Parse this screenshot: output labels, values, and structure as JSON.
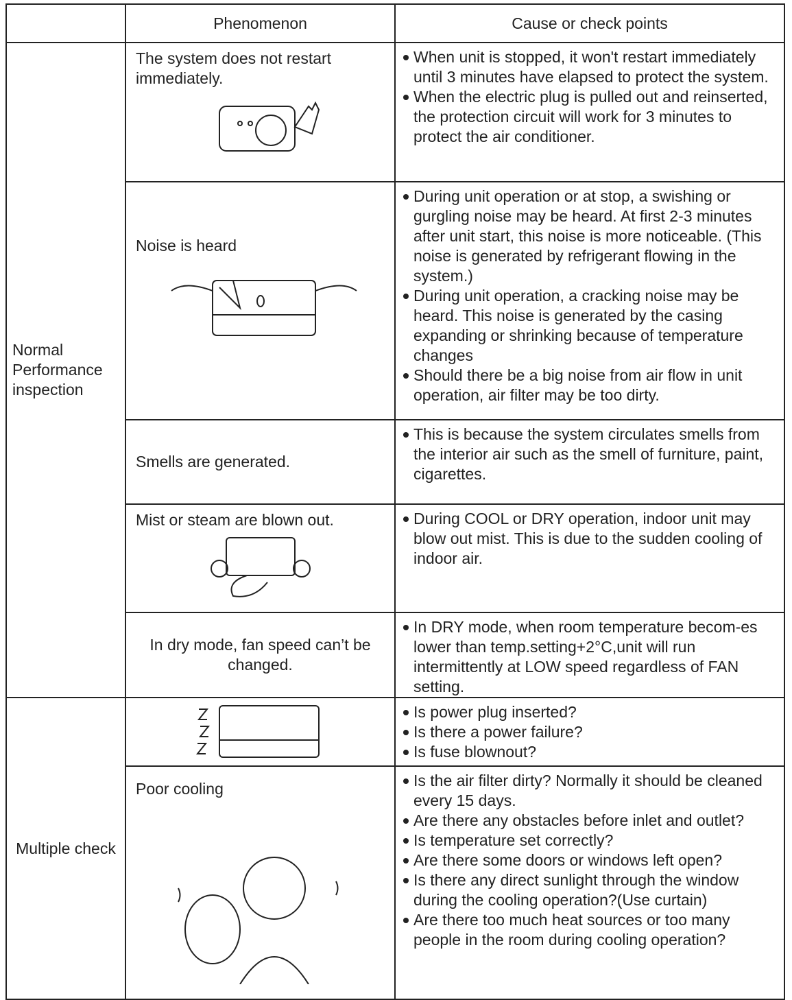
{
  "header": {
    "phenomenon": "Phenomenon",
    "causes": "Cause or check points"
  },
  "groups": [
    {
      "label": "Normal Performance inspection",
      "rows": [
        {
          "phenomenon": "The system does not restart immediately.",
          "causes": [
            "When unit is stopped, it won't restart immediately until 3 minutes have elapsed to protect the system.",
            "When the electric plug is pulled out and reinserted, the protection circuit will work for 3 minutes to protect the air conditioner."
          ]
        },
        {
          "phenomenon": "Noise is heard",
          "causes": [
            "During unit operation or at stop, a swishing or gurgling noise may be heard. At first 2-3 minutes after unit start, this noise is more noticeable. (This noise is generated by refrigerant flowing in the system.)",
            "During unit operation, a cracking noise may be heard. This noise is generated by the casing expanding or shrinking because of temperature changes",
            "Should there be a big noise from air flow in unit operation, air filter may be too dirty."
          ]
        },
        {
          "phenomenon": "Smells are generated.",
          "causes": [
            "This is because the system circulates smells from the interior air such as the smell of furniture, paint, cigarettes."
          ]
        },
        {
          "phenomenon": "Mist or steam are blown out.",
          "causes": [
            "During COOL or DRY operation, indoor unit may blow out mist. This is due to the sudden cooling of indoor air."
          ]
        },
        {
          "phenomenon": "In dry mode, fan speed can’t be changed.",
          "causes": [
            "In DRY mode, when room temperature becom-es lower than temp.setting+2°C,unit will  run intermittently at LOW speed regardless of FAN setting."
          ]
        }
      ]
    },
    {
      "label": "Multiple check",
      "rows": [
        {
          "causes": [
            "Is power plug inserted?",
            "Is there a power failure?",
            "Is fuse blownout?"
          ]
        },
        {
          "phenomenon": "Poor cooling",
          "causes": [
            "Is the air filter dirty? Normally it should be cleaned every 15 days.",
            "Are there any obstacles before inlet and outlet?",
            "Is temperature set correctly?",
            "Are there some doors or windows left open?",
            "Is there any direct sunlight through the window during the cooling operation?(Use curtain)",
            "Are there too much heat sources or too many people in the room during cooling operation?"
          ]
        }
      ]
    }
  ]
}
